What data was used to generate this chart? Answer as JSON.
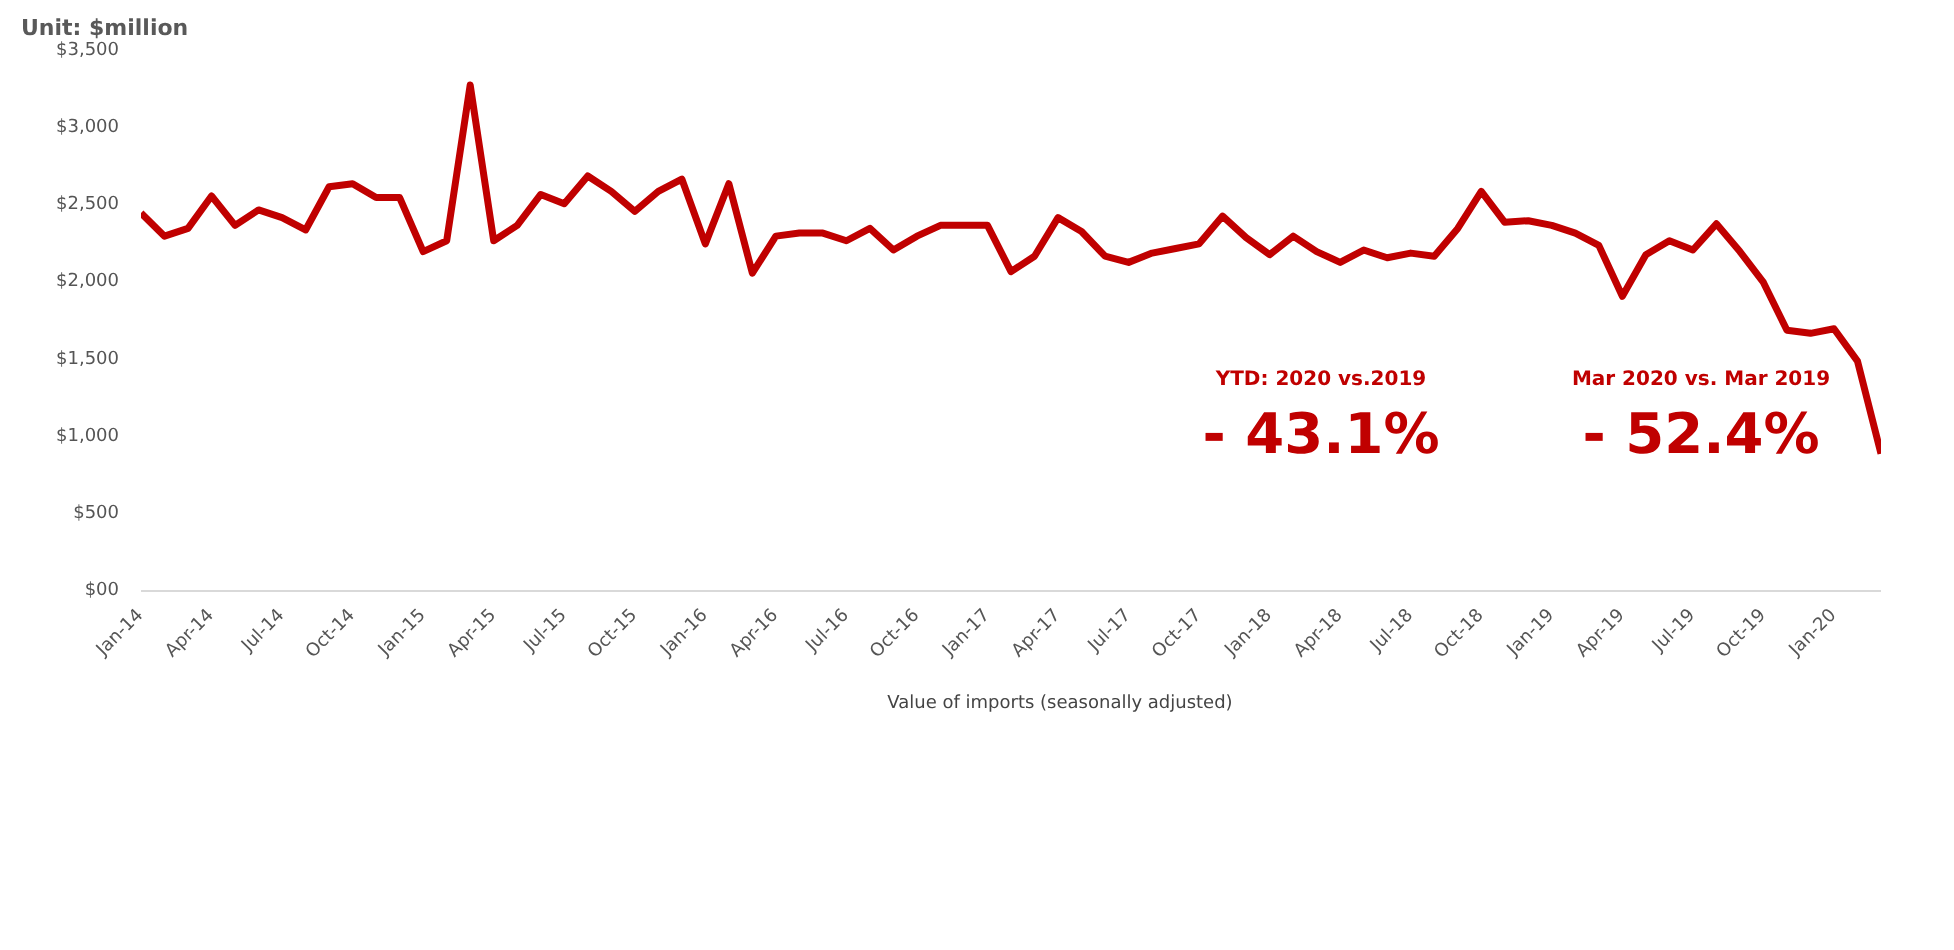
{
  "chart_data": {
    "type": "line",
    "x": [
      "2014-01",
      "2014-02",
      "2014-03",
      "2014-04",
      "2014-05",
      "2014-06",
      "2014-07",
      "2014-08",
      "2014-09",
      "2014-10",
      "2014-11",
      "2014-12",
      "2015-01",
      "2015-02",
      "2015-03",
      "2015-04",
      "2015-05",
      "2015-06",
      "2015-07",
      "2015-08",
      "2015-09",
      "2015-10",
      "2015-11",
      "2015-12",
      "2016-01",
      "2016-02",
      "2016-03",
      "2016-04",
      "2016-05",
      "2016-06",
      "2016-07",
      "2016-08",
      "2016-09",
      "2016-10",
      "2016-11",
      "2016-12",
      "2017-01",
      "2017-02",
      "2017-03",
      "2017-04",
      "2017-05",
      "2017-06",
      "2017-07",
      "2017-08",
      "2017-09",
      "2017-10",
      "2017-11",
      "2017-12",
      "2018-01",
      "2018-02",
      "2018-03",
      "2018-04",
      "2018-05",
      "2018-06",
      "2018-07",
      "2018-08",
      "2018-09",
      "2018-10",
      "2018-11",
      "2018-12",
      "2019-01",
      "2019-02",
      "2019-03",
      "2019-04",
      "2019-05",
      "2019-06",
      "2019-07",
      "2019-08",
      "2019-09",
      "2019-10",
      "2019-11",
      "2019-12",
      "2020-01",
      "2020-02",
      "2020-03"
    ],
    "series": [
      {
        "name": "Value of imports (seasonally adjusted)",
        "color": "#c00000",
        "values": [
          2450,
          2300,
          2350,
          2560,
          2370,
          2470,
          2420,
          2340,
          2620,
          2640,
          2550,
          2550,
          2200,
          2270,
          3280,
          2270,
          2370,
          2570,
          2510,
          2690,
          2590,
          2460,
          2590,
          2670,
          2250,
          2640,
          2060,
          2300,
          2320,
          2320,
          2270,
          2350,
          2210,
          2300,
          2370,
          2370,
          2370,
          2070,
          2170,
          2420,
          2330,
          2170,
          2130,
          2190,
          2220,
          2250,
          2430,
          2290,
          2180,
          2300,
          2200,
          2130,
          2210,
          2160,
          2190,
          2170,
          2350,
          2590,
          2390,
          2400,
          2370,
          2320,
          2240,
          1910,
          2180,
          2270,
          2210,
          2380,
          2200,
          2000,
          1690,
          1670,
          1700,
          1490,
          890
        ]
      }
    ],
    "ylim": [
      0,
      3500
    ],
    "yticks": [
      {
        "value": 0,
        "label": "$00"
      },
      {
        "value": 500,
        "label": "$500"
      },
      {
        "value": 1000,
        "label": "$1,000"
      },
      {
        "value": 1500,
        "label": "$1,500"
      },
      {
        "value": 2000,
        "label": "$2,000"
      },
      {
        "value": 2500,
        "label": "$2,500"
      },
      {
        "value": 3000,
        "label": "$3,000"
      },
      {
        "value": 3500,
        "label": "$3,500"
      }
    ],
    "xlim": [
      "2014-01",
      "2020-03"
    ],
    "xticks": [
      {
        "value": "2014-01",
        "label": "Jan-14"
      },
      {
        "value": "2014-04",
        "label": "Apr-14"
      },
      {
        "value": "2014-07",
        "label": "Jul-14"
      },
      {
        "value": "2014-10",
        "label": "Oct-14"
      },
      {
        "value": "2015-01",
        "label": "Jan-15"
      },
      {
        "value": "2015-04",
        "label": "Apr-15"
      },
      {
        "value": "2015-07",
        "label": "Jul-15"
      },
      {
        "value": "2015-10",
        "label": "Oct-15"
      },
      {
        "value": "2016-01",
        "label": "Jan-16"
      },
      {
        "value": "2016-04",
        "label": "Apr-16"
      },
      {
        "value": "2016-07",
        "label": "Jul-16"
      },
      {
        "value": "2016-10",
        "label": "Oct-16"
      },
      {
        "value": "2017-01",
        "label": "Jan-17"
      },
      {
        "value": "2017-04",
        "label": "Apr-17"
      },
      {
        "value": "2017-07",
        "label": "Jul-17"
      },
      {
        "value": "2017-10",
        "label": "Oct-17"
      },
      {
        "value": "2018-01",
        "label": "Jan-18"
      },
      {
        "value": "2018-04",
        "label": "Apr-18"
      },
      {
        "value": "2018-07",
        "label": "Jul-18"
      },
      {
        "value": "2018-10",
        "label": "Oct-18"
      },
      {
        "value": "2019-01",
        "label": "Jan-19"
      },
      {
        "value": "2019-04",
        "label": "Apr-19"
      },
      {
        "value": "2019-07",
        "label": "Jul-19"
      },
      {
        "value": "2019-10",
        "label": "Oct-19"
      },
      {
        "value": "2020-01",
        "label": "Jan-20"
      }
    ],
    "annotations": [
      "Unit: $million",
      "YTD: 2020 vs.2019",
      "- 43.1%",
      "Mar 2020 vs. Mar 2019",
      "- 52.4%"
    ],
    "grid": false,
    "legend": "bottom",
    "line_style": "solid"
  }
}
